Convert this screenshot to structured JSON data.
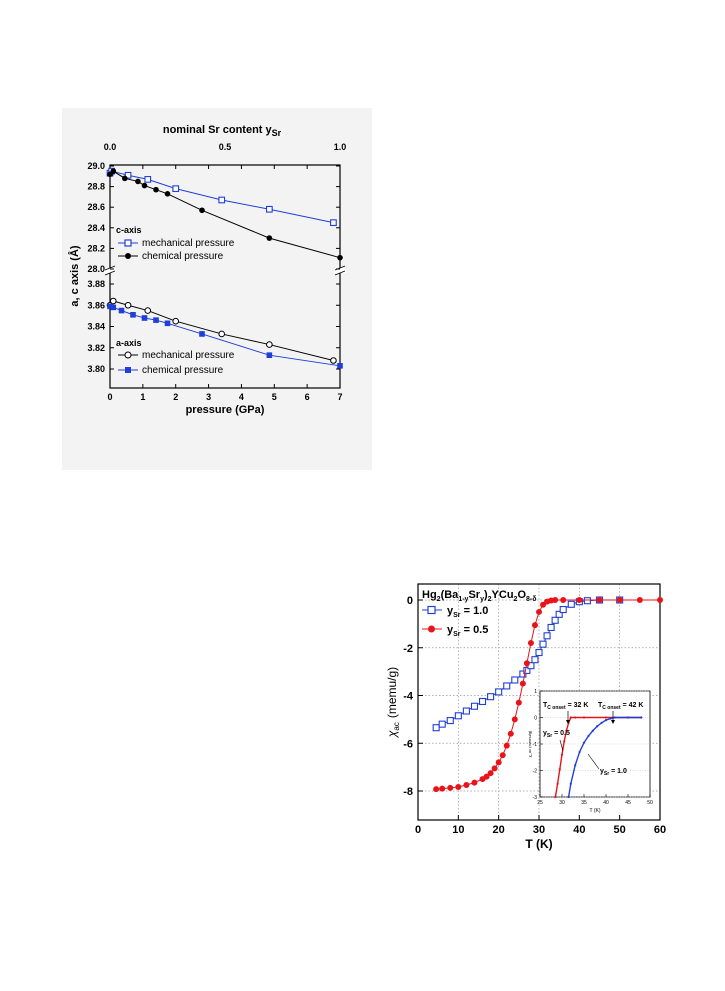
{
  "chart_data": [
    {
      "type": "line",
      "top_axis": {
        "label": "nominal Sr content y",
        "label_sub": "Sr",
        "ticks": [
          "0.0",
          "0.5",
          "1.0"
        ]
      },
      "xlabel": "pressure (GPa)",
      "ylabel": "a, c axis (Å)",
      "x_ticks": [
        "0",
        "1",
        "2",
        "3",
        "4",
        "5",
        "6",
        "7"
      ],
      "xlim": [
        0,
        7
      ],
      "y_ticks_upper": [
        "29.0",
        "28.8",
        "28.6",
        "28.4",
        "28.2",
        "28.0"
      ],
      "y_ticks_lower": [
        "3.88",
        "3.86",
        "3.84",
        "3.82",
        "3.80"
      ],
      "ylim_upper": [
        28.0,
        29.05
      ],
      "ylim_lower": [
        3.793,
        3.885
      ],
      "colors": {
        "blue": "#1f3fd8",
        "black": "#000000"
      },
      "c_axis": {
        "title": "c-axis",
        "series": [
          {
            "name": "mechanical pressure",
            "marker": "open-square",
            "color": "#1f3fd8",
            "x": [
              0.0,
              0.05,
              0.55,
              1.15,
              2.0,
              3.4,
              4.85,
              6.8
            ],
            "y": [
              28.93,
              28.95,
              28.91,
              28.87,
              28.78,
              28.67,
              28.58,
              28.45
            ]
          },
          {
            "name": "chemical pressure",
            "marker": "filled-circle",
            "color": "#000000",
            "x": [
              0.0,
              0.1,
              0.45,
              0.85,
              1.05,
              1.4,
              1.75,
              2.8,
              4.85,
              7.0
            ],
            "y": [
              28.92,
              28.95,
              28.88,
              28.85,
              28.81,
              28.77,
              28.73,
              28.57,
              28.3,
              28.11
            ]
          }
        ]
      },
      "a_axis": {
        "title": "a-axis",
        "series": [
          {
            "name": "mechanical pressure",
            "marker": "open-circle",
            "color": "#000000",
            "x": [
              0.0,
              0.1,
              0.55,
              1.15,
              2.0,
              3.4,
              4.85,
              6.8
            ],
            "y": [
              3.86,
              3.864,
              3.86,
              3.855,
              3.845,
              3.833,
              3.823,
              3.808
            ]
          },
          {
            "name": "chemical pressure",
            "marker": "filled-square",
            "color": "#1f3fd8",
            "x": [
              0.0,
              0.1,
              0.35,
              0.7,
              1.05,
              1.4,
              1.75,
              2.8,
              4.85,
              7.0
            ],
            "y": [
              3.859,
              3.858,
              3.855,
              3.851,
              3.848,
              3.846,
              3.843,
              3.833,
              3.813,
              3.803
            ]
          }
        ]
      }
    },
    {
      "type": "scatter",
      "title_parts": [
        "Hg",
        "2",
        "(Ba",
        "1-y",
        "Sr",
        "y",
        ")",
        "2",
        "YCu",
        "2",
        "O",
        "8-δ"
      ],
      "xlabel": "T (K)",
      "ylabel_main": "χ",
      "ylabel_sub": "ac",
      "ylabel_unit": "(memu/g)",
      "x_ticks": [
        "0",
        "10",
        "20",
        "30",
        "40",
        "50",
        "60"
      ],
      "y_ticks": [
        "0",
        "-2",
        "-4",
        "-6",
        "-8"
      ],
      "xlim": [
        0,
        60
      ],
      "ylim": [
        -8.6,
        0.3
      ],
      "grid": true,
      "colors": {
        "blue": "#1f3fd8",
        "red": "#e8141a"
      },
      "series": [
        {
          "name_main": "y",
          "name_sub": "Sr",
          "name_val": " = 1.0",
          "marker": "open-square",
          "color": "#1f3fd8",
          "x": [
            4.5,
            6,
            8,
            10,
            12,
            14,
            16,
            18,
            20,
            22,
            24,
            26,
            27,
            28,
            29,
            30,
            31,
            32,
            33,
            34,
            35,
            36,
            38,
            40,
            42,
            45,
            50
          ],
          "y": [
            -5.35,
            -5.2,
            -5.05,
            -4.85,
            -4.65,
            -4.45,
            -4.25,
            -4.05,
            -3.85,
            -3.6,
            -3.35,
            -3.1,
            -2.95,
            -2.75,
            -2.5,
            -2.2,
            -1.85,
            -1.5,
            -1.15,
            -0.85,
            -0.6,
            -0.4,
            -0.18,
            -0.07,
            -0.03,
            0.0,
            0.0
          ]
        },
        {
          "name_main": "y",
          "name_sub": "Sr",
          "name_val": " = 0.5",
          "marker": "filled-circle",
          "color": "#e8141a",
          "x": [
            4.5,
            6,
            8,
            10,
            12,
            14,
            16,
            17,
            18,
            19,
            20,
            21,
            22,
            23,
            24,
            25,
            26,
            27,
            28,
            29,
            30,
            31,
            32,
            33,
            34,
            36,
            40,
            45,
            50,
            55,
            60
          ],
          "y": [
            -7.92,
            -7.9,
            -7.87,
            -7.83,
            -7.75,
            -7.65,
            -7.5,
            -7.4,
            -7.25,
            -7.05,
            -6.8,
            -6.5,
            -6.1,
            -5.6,
            -5.0,
            -4.3,
            -3.5,
            -2.65,
            -1.8,
            -1.05,
            -0.5,
            -0.2,
            -0.07,
            -0.02,
            0.0,
            0.0,
            0.0,
            0.0,
            0.0,
            0.0,
            0.0
          ]
        }
      ],
      "inset": {
        "xlabel": "T (K)",
        "ylabel": "χ_ac (memu/g)",
        "x_ticks": [
          "25",
          "30",
          "35",
          "40",
          "45",
          "50"
        ],
        "y_ticks": [
          "1",
          "0",
          "-1",
          "-2",
          "-3"
        ],
        "xlim": [
          25,
          50
        ],
        "ylim": [
          -3,
          1
        ],
        "annotations": [
          {
            "main": "T",
            "sub": "C onset",
            "val": " = 32 K"
          },
          {
            "main": "T",
            "sub": "C onset",
            "val": " = 42 K"
          },
          {
            "main": "y",
            "sub": "Sr",
            "val": " = 0.5"
          },
          {
            "main": "y",
            "sub": "Sr",
            "val": " = 1.0"
          }
        ],
        "series": [
          {
            "color": "#e8141a",
            "x": [
              28.5,
              29,
              29.5,
              30,
              30.5,
              31,
              31.5,
              32,
              33,
              35,
              40,
              45,
              48
            ],
            "y": [
              -3.0,
              -2.5,
              -1.95,
              -1.4,
              -0.9,
              -0.5,
              -0.2,
              0.0,
              0.0,
              0.0,
              0.0,
              0.0,
              0.0
            ]
          },
          {
            "color": "#1f3fd8",
            "x": [
              31.5,
              32,
              33,
              34,
              35,
              36,
              37,
              38,
              39,
              40,
              41,
              42,
              45,
              48
            ],
            "y": [
              -3.0,
              -2.5,
              -1.8,
              -1.3,
              -0.95,
              -0.7,
              -0.5,
              -0.33,
              -0.2,
              -0.1,
              -0.04,
              0.0,
              0.0,
              0.0
            ]
          }
        ]
      }
    }
  ]
}
